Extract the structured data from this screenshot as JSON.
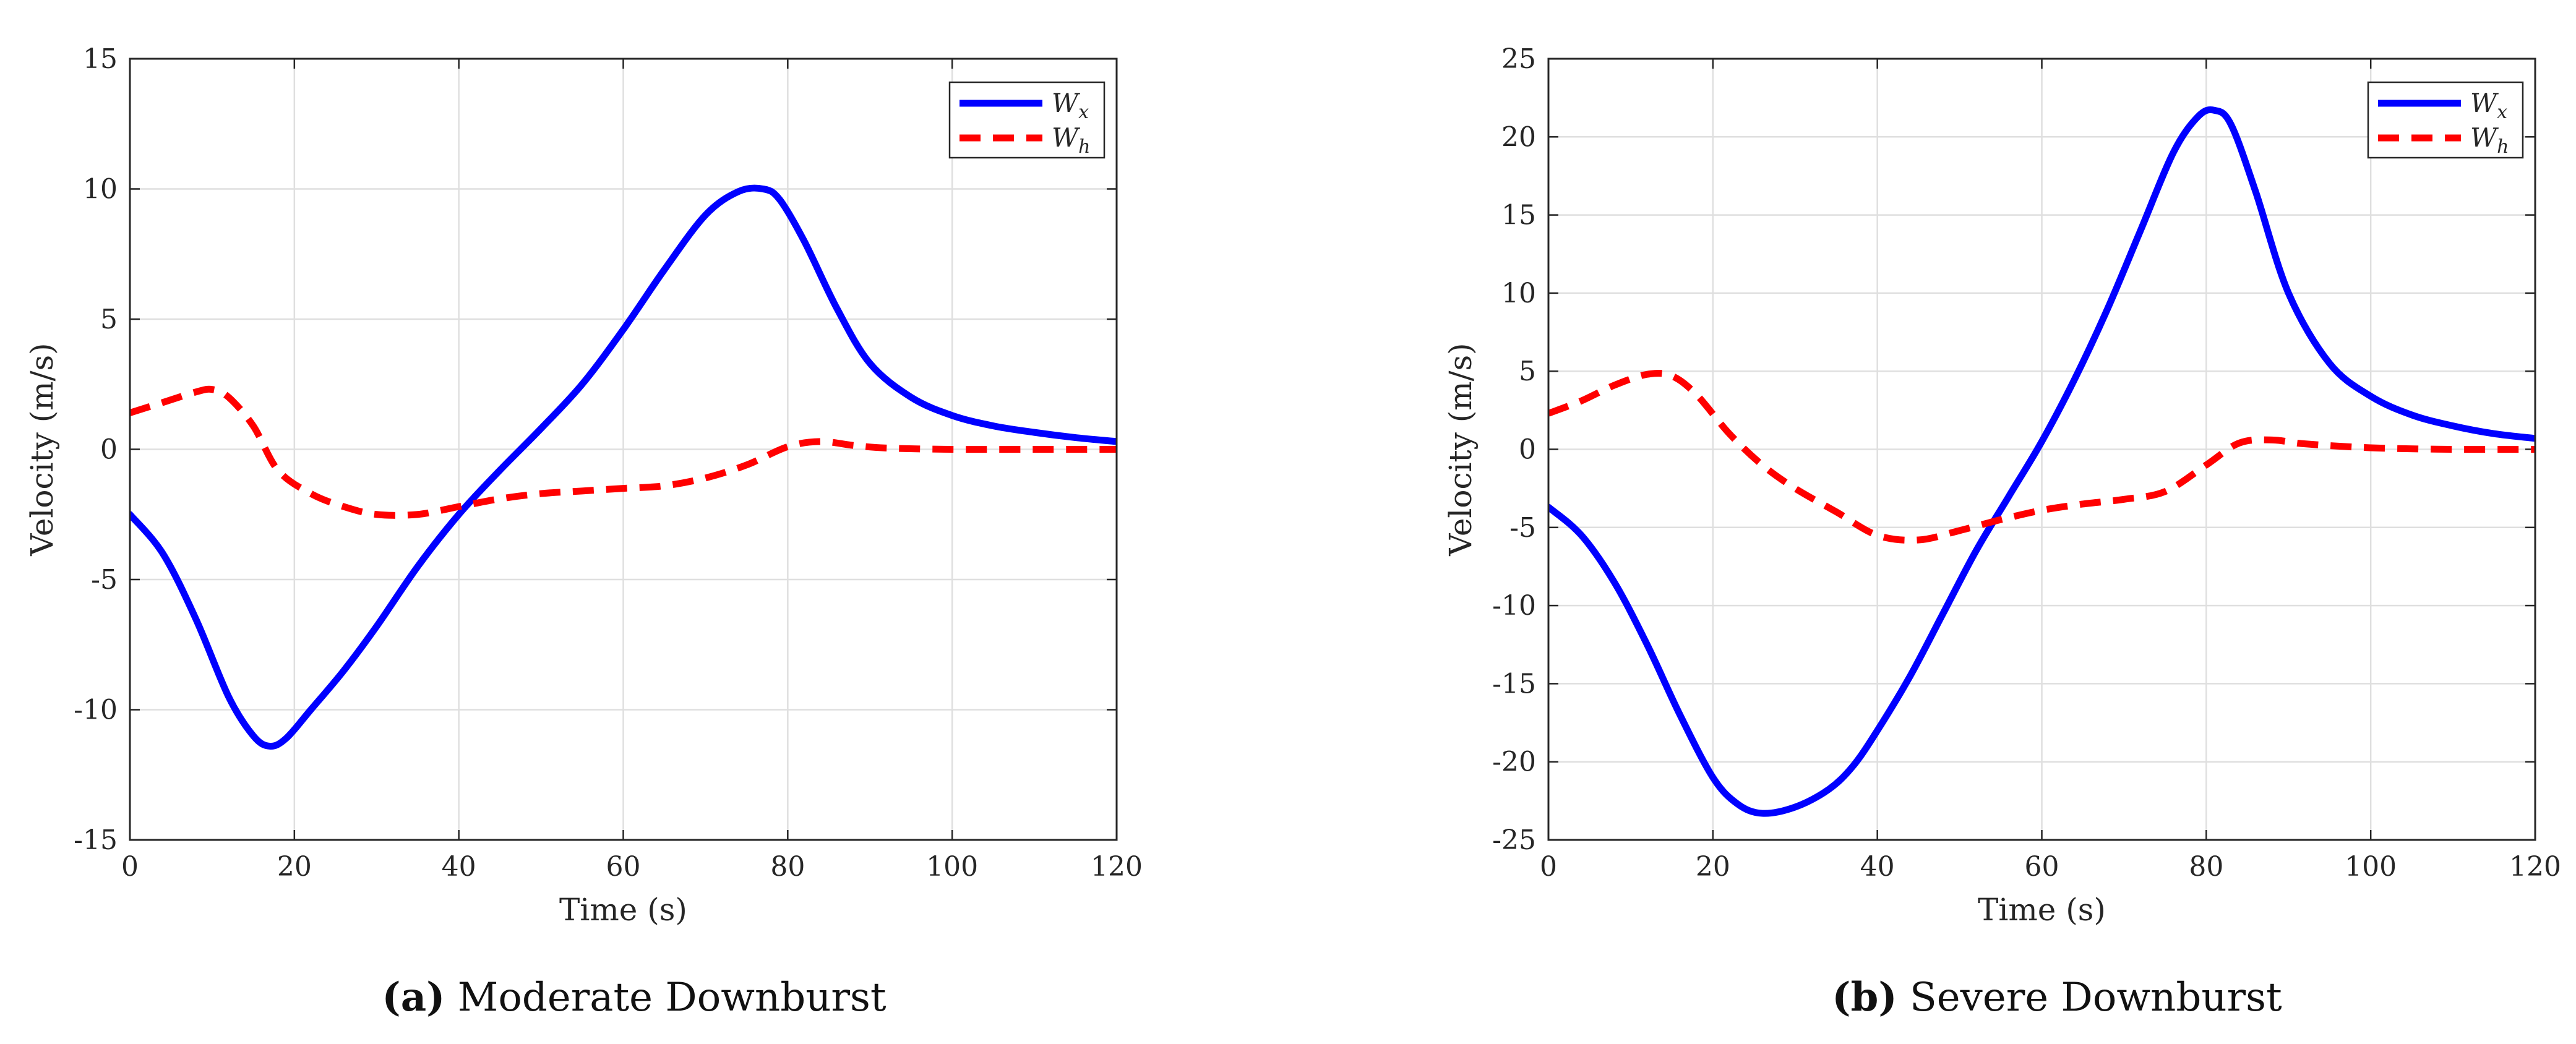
{
  "chart_data": [
    {
      "id": "a",
      "type": "line",
      "title": "",
      "xlabel": "Time (s)",
      "ylabel": "Velocity (m/s)",
      "xlim": [
        0,
        120
      ],
      "ylim": [
        -15,
        15
      ],
      "xticks": [
        0,
        20,
        40,
        60,
        80,
        100,
        120
      ],
      "yticks": [
        -15,
        -10,
        -5,
        0,
        5,
        10,
        15
      ],
      "xtick_labels": [
        "0",
        "20",
        "40",
        "60",
        "80",
        "100",
        "120"
      ],
      "ytick_labels": [
        "-15",
        "-10",
        "-5",
        "0",
        "5",
        "10",
        "15"
      ],
      "grid": true,
      "legend_position": "top-right",
      "series": [
        {
          "name": "Wx",
          "legend_main": "W",
          "legend_sub": "x",
          "color": "#0000ff",
          "style": "solid",
          "x": [
            0,
            4,
            8,
            12,
            15,
            17,
            19,
            22,
            26,
            30,
            35,
            40,
            45,
            50,
            55,
            60,
            65,
            70,
            74,
            77,
            79,
            82,
            86,
            90,
            95,
            100,
            105,
            110,
            115,
            120
          ],
          "y": [
            -2.5,
            -4.0,
            -6.5,
            -9.5,
            -11.0,
            -11.4,
            -11.1,
            -10.0,
            -8.5,
            -6.8,
            -4.5,
            -2.5,
            -0.8,
            0.8,
            2.5,
            4.6,
            6.9,
            9.0,
            9.9,
            10.0,
            9.6,
            8.0,
            5.4,
            3.3,
            2.0,
            1.3,
            0.9,
            0.65,
            0.45,
            0.3
          ]
        },
        {
          "name": "Wh",
          "legend_main": "W",
          "legend_sub": "h",
          "color": "#ff0000",
          "style": "dashed",
          "x": [
            0,
            4,
            8,
            10,
            12,
            15,
            18,
            22,
            26,
            30,
            35,
            40,
            45,
            50,
            55,
            60,
            65,
            70,
            75,
            80,
            84,
            88,
            92,
            100,
            110,
            120
          ],
          "y": [
            1.4,
            1.8,
            2.2,
            2.3,
            2.0,
            0.9,
            -0.8,
            -1.7,
            -2.2,
            -2.5,
            -2.5,
            -2.2,
            -1.9,
            -1.7,
            -1.6,
            -1.5,
            -1.4,
            -1.1,
            -0.6,
            0.1,
            0.3,
            0.15,
            0.05,
            0.0,
            0.0,
            0.0
          ]
        }
      ]
    },
    {
      "id": "b",
      "type": "line",
      "title": "",
      "xlabel": "Time (s)",
      "ylabel": "Velocity (m/s)",
      "xlim": [
        0,
        120
      ],
      "ylim": [
        -25,
        25
      ],
      "xticks": [
        0,
        20,
        40,
        60,
        80,
        100,
        120
      ],
      "yticks": [
        -25,
        -20,
        -15,
        -10,
        -5,
        0,
        5,
        10,
        15,
        20,
        25
      ],
      "xtick_labels": [
        "0",
        "20",
        "40",
        "60",
        "80",
        "100",
        "120"
      ],
      "ytick_labels": [
        "-25",
        "-20",
        "-15",
        "-10",
        "-5",
        "0",
        "5",
        "10",
        "15",
        "20",
        "25"
      ],
      "grid": true,
      "legend_position": "top-right",
      "series": [
        {
          "name": "Wx",
          "legend_main": "W",
          "legend_sub": "x",
          "color": "#0000ff",
          "style": "solid",
          "x": [
            0,
            4,
            8,
            12,
            16,
            20,
            23,
            26,
            30,
            34,
            37,
            40,
            44,
            48,
            52,
            56,
            60,
            64,
            68,
            72,
            76,
            79,
            81,
            83,
            86,
            90,
            95,
            100,
            105,
            110,
            115,
            120
          ],
          "y": [
            -3.7,
            -5.5,
            -8.5,
            -12.5,
            -17.0,
            -21.0,
            -22.7,
            -23.3,
            -22.9,
            -21.8,
            -20.3,
            -18.0,
            -14.5,
            -10.5,
            -6.5,
            -3.0,
            0.5,
            4.5,
            9.0,
            14.0,
            19.0,
            21.3,
            21.7,
            20.8,
            16.5,
            10.0,
            5.5,
            3.4,
            2.2,
            1.5,
            1.0,
            0.7
          ]
        },
        {
          "name": "Wh",
          "legend_main": "W",
          "legend_sub": "h",
          "color": "#ff0000",
          "style": "dashed",
          "x": [
            0,
            4,
            8,
            12,
            15,
            18,
            22,
            26,
            30,
            35,
            40,
            45,
            50,
            55,
            60,
            65,
            70,
            75,
            80,
            84,
            88,
            92,
            100,
            110,
            120
          ],
          "y": [
            2.3,
            3.1,
            4.1,
            4.8,
            4.7,
            3.5,
            1.0,
            -1.0,
            -2.5,
            -4.0,
            -5.5,
            -5.8,
            -5.2,
            -4.5,
            -3.9,
            -3.5,
            -3.2,
            -2.7,
            -1.0,
            0.4,
            0.6,
            0.35,
            0.1,
            0.0,
            0.0
          ]
        }
      ]
    }
  ],
  "captions": [
    {
      "label": "(a)",
      "text": " Moderate Downburst"
    },
    {
      "label": "(b)",
      "text": " Severe Downburst"
    }
  ]
}
